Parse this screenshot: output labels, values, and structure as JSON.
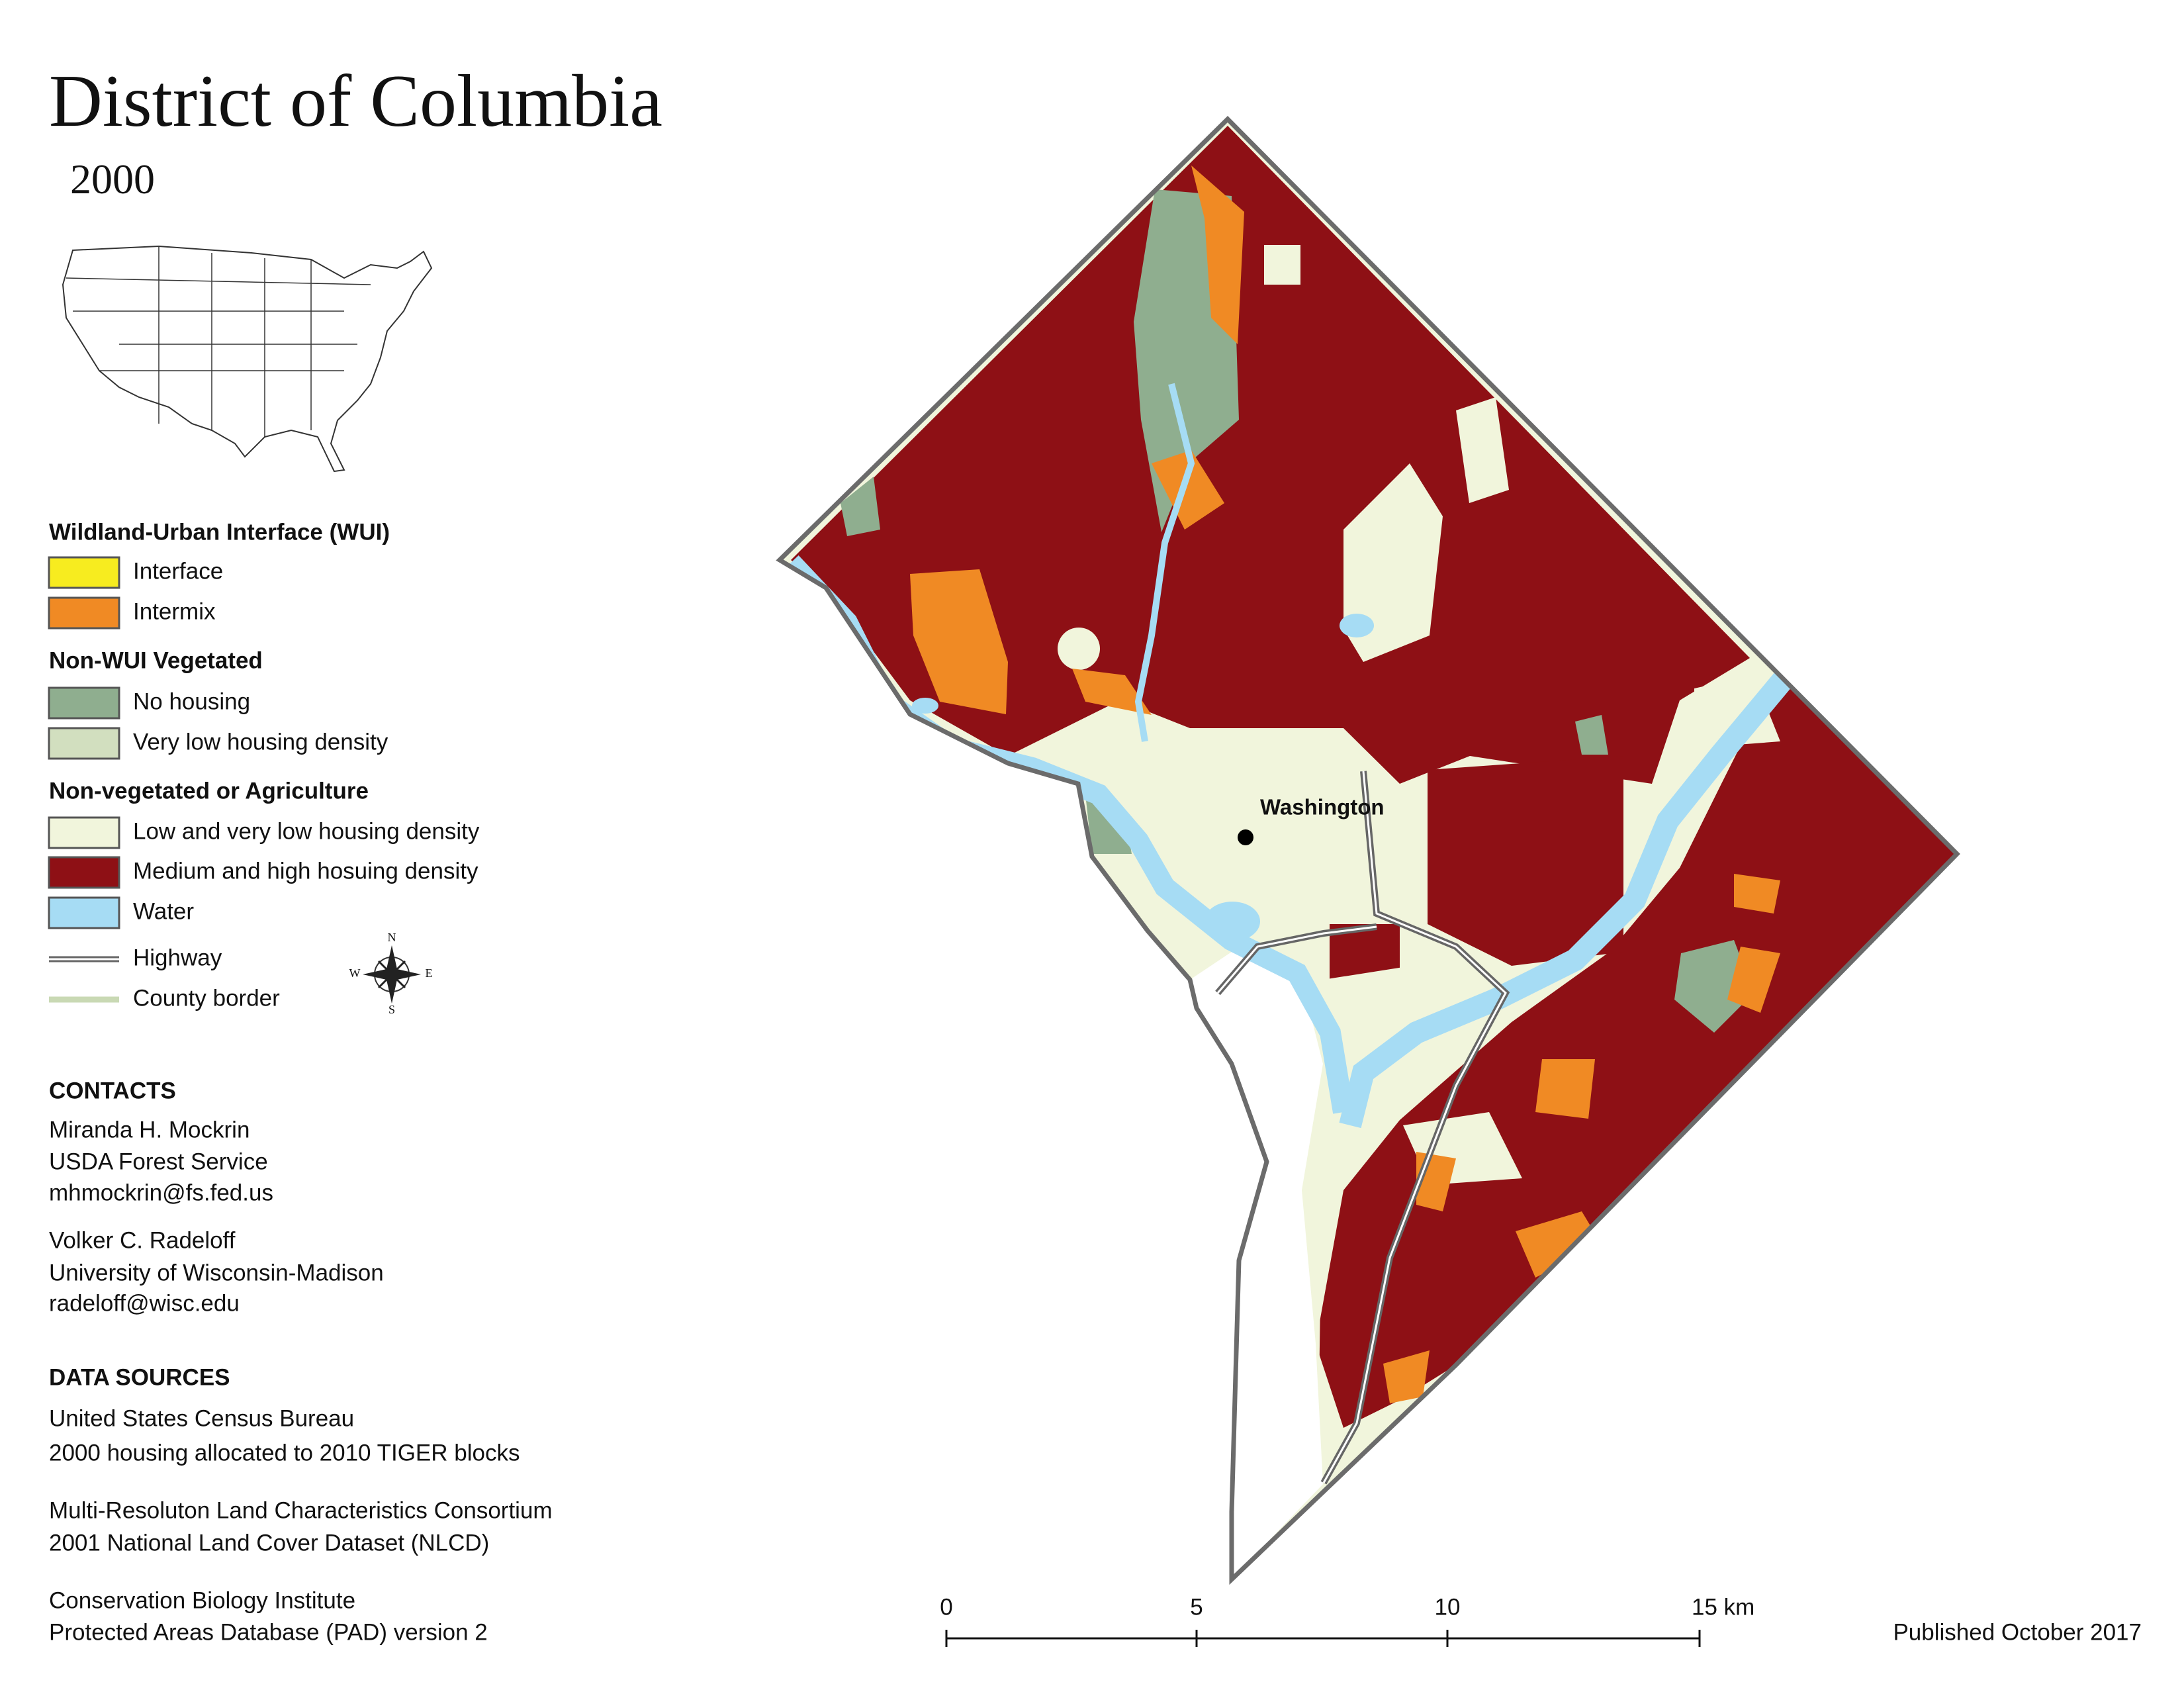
{
  "header": {
    "title": "District of Columbia",
    "subtitle": "2000"
  },
  "legend": {
    "sections": [
      {
        "heading": "Wildland-Urban Interface (WUI)",
        "items": [
          "Interface",
          "Intermix"
        ]
      },
      {
        "heading": "Non-WUI Vegetated",
        "items": [
          "No housing",
          "Very low housing density"
        ]
      },
      {
        "heading": "Non-vegetated or Agriculture",
        "items": [
          "Low and very low housing density",
          "Medium and high hosuing density",
          "Water"
        ]
      }
    ],
    "lines": [
      "Highway",
      "County border"
    ]
  },
  "map": {
    "place_label": "Washington",
    "compass": [
      "N",
      "E",
      "S",
      "W"
    ]
  },
  "contacts": {
    "heading": "CONTACTS",
    "people": [
      [
        "Miranda H. Mockrin",
        "USDA Forest Service",
        "mhmockrin@fs.fed.us"
      ],
      [
        "Volker C. Radeloff",
        "University of Wisconsin-Madison",
        "radeloff@wisc.edu"
      ]
    ]
  },
  "data_sources": {
    "heading": "DATA SOURCES",
    "entries": [
      [
        "United States Census Bureau",
        "2000 housing allocated to 2010 TIGER blocks"
      ],
      [
        "Multi-Resoluton Land Characteristics Consortium",
        "2001 National Land Cover Dataset (NLCD)"
      ],
      [
        "Conservation Biology Institute",
        "Protected Areas Database (PAD) version 2"
      ]
    ]
  },
  "scale_bar": {
    "labels": [
      "0",
      "5",
      "10",
      "15 km"
    ]
  },
  "footer": {
    "published": "Published October 2017"
  }
}
